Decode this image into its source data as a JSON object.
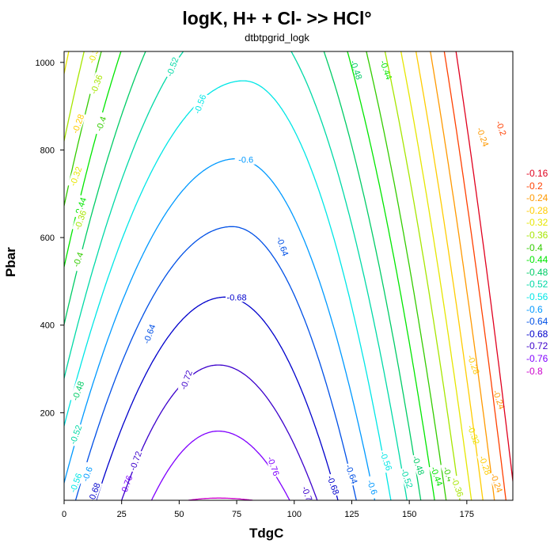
{
  "chart_data": {
    "type": "contour",
    "title": "logK, H+ + Cl- >> HCl°",
    "subtitle": "dtbtpgrid_logk",
    "xlabel": "TdgC",
    "ylabel": "Pbar",
    "xlim": [
      0,
      195
    ],
    "ylim": [
      0,
      1025
    ],
    "xticks": [
      0,
      25,
      50,
      75,
      100,
      125,
      150,
      175
    ],
    "yticks": [
      200,
      400,
      600,
      800,
      1000
    ],
    "grid": false,
    "legend_position": "right",
    "levels": [
      -0.16,
      -0.2,
      -0.24,
      -0.28,
      -0.32,
      -0.36,
      -0.4,
      -0.44,
      -0.48,
      -0.52,
      -0.56,
      -0.6,
      -0.64,
      -0.68,
      -0.72,
      -0.76,
      -0.8
    ],
    "level_labels": [
      "-0.16",
      "-0.2",
      "-0.24",
      "-0.28",
      "-0.32",
      "-0.36",
      "-0.4",
      "-0.44",
      "-0.48",
      "-0.52",
      "-0.56",
      "-0.6",
      "-0.64",
      "-0.68",
      "-0.72",
      "-0.76",
      "-0.8"
    ],
    "level_colors": [
      "#e0001e",
      "#ff4000",
      "#ff9900",
      "#ffcc00",
      "#e6e600",
      "#a6e600",
      "#33cc00",
      "#00e600",
      "#00cc66",
      "#00d9a6",
      "#00e6e6",
      "#0099ff",
      "#0050e6",
      "#0000cc",
      "#3c00cc",
      "#8000ff",
      "#cc00cc"
    ],
    "contours": [
      {
        "level": -0.8,
        "label": "",
        "color": "#cc00cc",
        "side": "both",
        "t_min": [
          54,
          82
        ],
        "apex": [
          67,
          5
        ]
      },
      {
        "level": -0.76,
        "label": "-0.76",
        "color": "#8000ff",
        "side": "both",
        "t_min": [
          38,
          98
        ],
        "apex": [
          67,
          158
        ],
        "label_at": [
          {
            "x": 27,
            "y": 35
          },
          {
            "x": 91,
            "y": 78
          }
        ]
      },
      {
        "level": -0.72,
        "label": "-0.72",
        "color": "#3c00cc",
        "side": "both",
        "t_min": [
          25,
          110
        ],
        "apex": [
          67,
          309
        ],
        "label_at": [
          {
            "x": 31,
            "y": 90
          },
          {
            "x": 53,
            "y": 275
          },
          {
            "x": 106,
            "y": 10
          }
        ]
      },
      {
        "level": -0.68,
        "label": "-0.68",
        "color": "#0000cc",
        "side": "both",
        "t_min": [
          14,
          119
        ],
        "apex": [
          70,
          464
        ],
        "label_at": [
          {
            "x": 13,
            "y": 18
          },
          {
            "x": 75,
            "y": 464
          },
          {
            "x": 117,
            "y": 35
          }
        ]
      },
      {
        "level": -0.64,
        "label": "-0.64",
        "color": "#0050e6",
        "side": "both",
        "t_min": [
          5,
          127
        ],
        "apex": [
          73,
          625
        ],
        "label_at": [
          {
            "x": 37,
            "y": 380
          },
          {
            "x": 95,
            "y": 580
          },
          {
            "x": 125,
            "y": 60
          }
        ]
      },
      {
        "level": -0.6,
        "label": "-0.6",
        "color": "#0099ff",
        "side": "both",
        "t_min": [
          -2,
          135
        ],
        "apex": [
          75,
          780
        ],
        "label_at": [
          {
            "x": 10,
            "y": 60
          },
          {
            "x": 79,
            "y": 778
          },
          {
            "x": 134,
            "y": 30
          }
        ]
      },
      {
        "level": -0.56,
        "label": "-0.56",
        "color": "#00e6e6",
        "side": "both",
        "t_min": [
          -8,
          142
        ],
        "apex": [
          78,
          958
        ],
        "label_at": [
          {
            "x": 5,
            "y": 40
          },
          {
            "x": 59,
            "y": 905
          },
          {
            "x": 140,
            "y": 90
          }
        ]
      },
      {
        "level": -0.52,
        "label": "-0.52",
        "color": "#00d9a6",
        "side": "both",
        "t_min": [
          -12,
          149
        ],
        "apex": [
          78,
          1120
        ],
        "label_at": [
          {
            "x": 5,
            "y": 150
          },
          {
            "x": 47,
            "y": 990
          },
          {
            "x": 149,
            "y": 50
          }
        ]
      },
      {
        "level": -0.48,
        "label": "-0.48",
        "color": "#00cc66",
        "side": "both",
        "t_min": [
          -16,
          155
        ],
        "apex": [
          78,
          1290
        ],
        "label_at": [
          {
            "x": 6,
            "y": 250
          },
          {
            "x": 127,
            "y": 983
          },
          {
            "x": 154,
            "y": 80
          }
        ]
      },
      {
        "level": -0.44,
        "label": "-0.44",
        "color": "#00e600",
        "side": "both",
        "t_min": [
          -20,
          161
        ],
        "apex": [
          78,
          1455
        ],
        "label_at": [
          {
            "x": 7,
            "y": 670
          },
          {
            "x": 140,
            "y": 983
          },
          {
            "x": 162,
            "y": 55
          }
        ]
      },
      {
        "level": -0.4,
        "label": "-0.4",
        "color": "#33cc00",
        "side": "both",
        "t_min": [
          -24,
          166
        ],
        "apex": [
          78,
          1620
        ],
        "label_at": [
          {
            "x": 6,
            "y": 550
          },
          {
            "x": 16,
            "y": 860
          },
          {
            "x": 167,
            "y": 60
          }
        ]
      },
      {
        "level": -0.36,
        "label": "-0.36",
        "color": "#a6e600",
        "side": "both",
        "t_min": [
          -28,
          172
        ],
        "apex": [
          78,
          1790
        ],
        "label_at": [
          {
            "x": 7,
            "y": 640
          },
          {
            "x": 14,
            "y": 950
          },
          {
            "x": 171,
            "y": 30
          }
        ]
      },
      {
        "level": -0.32,
        "label": "-0.32",
        "color": "#e6e600",
        "side": "both",
        "t_min": [
          -32,
          177
        ],
        "apex": [
          78,
          1960
        ],
        "label_at": [
          {
            "x": 5,
            "y": 740
          },
          {
            "x": 13,
            "y": 1020
          },
          {
            "x": 178,
            "y": 150
          }
        ]
      },
      {
        "level": -0.28,
        "label": "-0.28",
        "color": "#ffcc00",
        "side": "both",
        "t_min": [
          -36,
          182
        ],
        "apex": [
          78,
          2130
        ],
        "label_at": [
          {
            "x": 6,
            "y": 860
          },
          {
            "x": 178,
            "y": 310
          },
          {
            "x": 183,
            "y": 80
          }
        ]
      },
      {
        "level": -0.24,
        "label": "-0.24",
        "color": "#ff9900",
        "side": "right",
        "t_min": [
          -40,
          187
        ],
        "apex": [
          78,
          2300
        ],
        "label_at": [
          {
            "x": 182,
            "y": 830
          },
          {
            "x": 189,
            "y": 230
          },
          {
            "x": 188,
            "y": 40
          }
        ]
      },
      {
        "level": -0.2,
        "label": "-0.2",
        "color": "#ff4000",
        "side": "right",
        "t_min": [
          -44,
          192
        ],
        "apex": [
          78,
          2470
        ],
        "label_at": [
          {
            "x": 190,
            "y": 850
          }
        ]
      },
      {
        "level": -0.16,
        "label": "",
        "color": "#e0001e",
        "side": "right",
        "t_min": [
          -48,
          196
        ],
        "apex": [
          78,
          2640
        ]
      }
    ]
  }
}
